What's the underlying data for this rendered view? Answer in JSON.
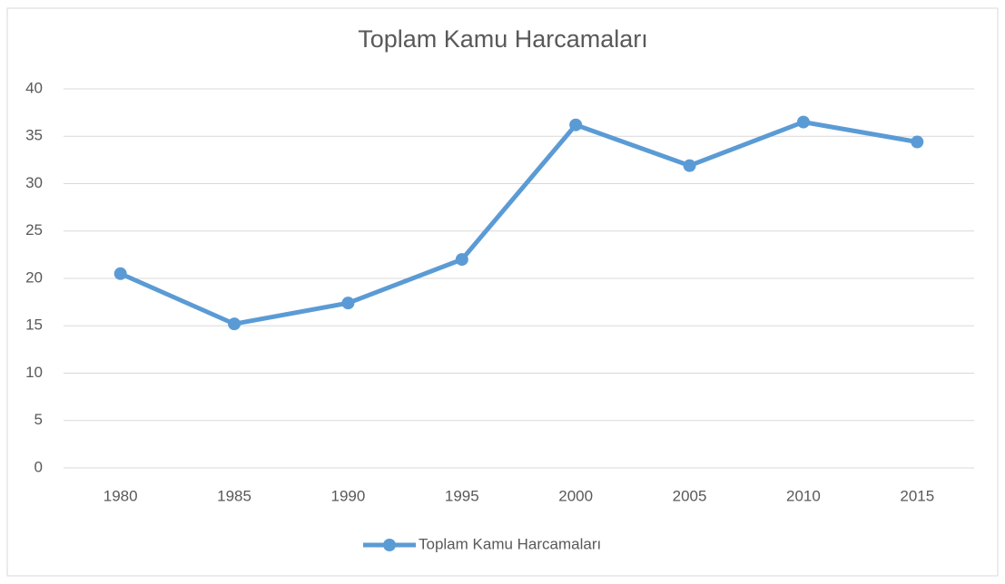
{
  "chart_data": {
    "type": "line",
    "title": "Toplam Kamu Harcamaları",
    "categories": [
      "1980",
      "1985",
      "1990",
      "1995",
      "2000",
      "2005",
      "2010",
      "2015"
    ],
    "series": [
      {
        "name": "Toplam Kamu Harcamaları",
        "color": "#5b9bd5",
        "values": [
          20.5,
          15.2,
          17.4,
          22.0,
          36.2,
          31.9,
          36.5,
          34.4
        ]
      }
    ],
    "ylim": [
      0,
      40
    ],
    "yticks": [
      0,
      5,
      10,
      15,
      20,
      25,
      30,
      35,
      40
    ],
    "grid": true,
    "legend": "bottom"
  }
}
